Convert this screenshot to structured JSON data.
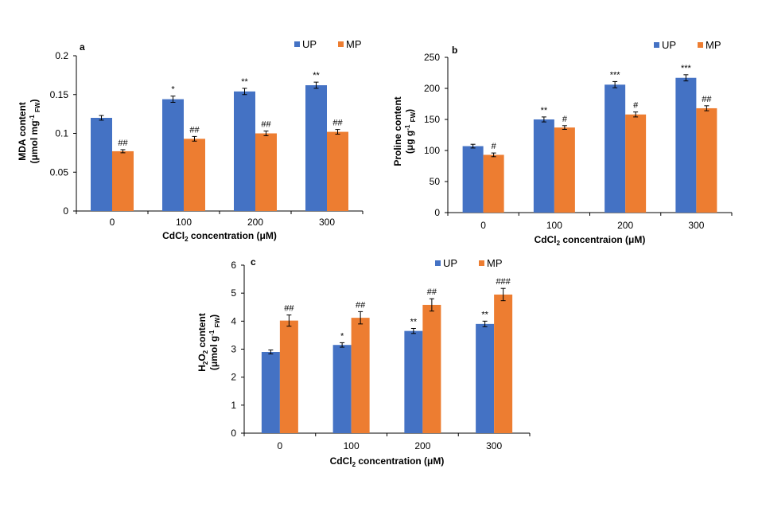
{
  "colors": {
    "UP": "#4472C4",
    "MP": "#ED7D31",
    "axis": "#000000"
  },
  "chart_data": [
    {
      "type": "bar",
      "panel": "a",
      "categories": [
        "0",
        "100",
        "200",
        "300"
      ],
      "xlabel": "CdCl2 concentration (μM)",
      "ylabel_line1": "MDA content",
      "ylabel_line2": "(μmol mg-1 FW)",
      "ylim": [
        0,
        0.2
      ],
      "yticks": [
        "0",
        "0.05",
        "0.1",
        "0.15",
        "0.2"
      ],
      "ytick_values": [
        0,
        0.05,
        0.1,
        0.15,
        0.2
      ],
      "legend_position": "top-right",
      "series": [
        {
          "name": "UP",
          "values": [
            0.12,
            0.144,
            0.154,
            0.162
          ],
          "errors": [
            0.003,
            0.004,
            0.004,
            0.004
          ],
          "annotations": [
            "",
            "*",
            "**",
            "**"
          ]
        },
        {
          "name": "MP",
          "values": [
            0.077,
            0.093,
            0.1,
            0.102
          ],
          "errors": [
            0.002,
            0.003,
            0.003,
            0.003
          ],
          "annotations": [
            "##",
            "##",
            "##",
            "##"
          ]
        }
      ]
    },
    {
      "type": "bar",
      "panel": "b",
      "categories": [
        "0",
        "100",
        "200",
        "300"
      ],
      "xlabel": "CdCl2 concentraion (μM)",
      "ylabel_line1": "Proline content",
      "ylabel_line2": "(μg g-1 FW)",
      "ylim": [
        0,
        250
      ],
      "yticks": [
        "0",
        "50",
        "100",
        "150",
        "200",
        "250"
      ],
      "ytick_values": [
        0,
        50,
        100,
        150,
        200,
        250
      ],
      "legend_position": "top-right",
      "series": [
        {
          "name": "UP",
          "values": [
            107,
            150,
            206,
            217
          ],
          "errors": [
            3,
            4,
            5,
            5
          ],
          "annotations": [
            "",
            "**",
            "***",
            "***"
          ]
        },
        {
          "name": "MP",
          "values": [
            93,
            137,
            158,
            168
          ],
          "errors": [
            3,
            3,
            4,
            4
          ],
          "annotations": [
            "#",
            "#",
            "#",
            "##"
          ]
        }
      ]
    },
    {
      "type": "bar",
      "panel": "c",
      "categories": [
        "0",
        "100",
        "200",
        "300"
      ],
      "xlabel": "CdCl2 concentration (μM)",
      "ylabel_line1": "H2O2 content",
      "ylabel_line2": "(μmol g-1 FW)",
      "ylim": [
        0,
        6
      ],
      "yticks": [
        "0",
        "1",
        "2",
        "3",
        "4",
        "5",
        "6"
      ],
      "ytick_values": [
        0,
        1,
        2,
        3,
        4,
        5,
        6
      ],
      "legend_position": "top-right",
      "series": [
        {
          "name": "UP",
          "values": [
            2.9,
            3.15,
            3.65,
            3.9
          ],
          "errors": [
            0.07,
            0.08,
            0.09,
            0.1
          ],
          "annotations": [
            "",
            "*",
            "**",
            "**"
          ]
        },
        {
          "name": "MP",
          "values": [
            4.02,
            4.12,
            4.58,
            4.95
          ],
          "errors": [
            0.2,
            0.22,
            0.22,
            0.22
          ],
          "annotations": [
            "##",
            "##",
            "##",
            "###"
          ]
        }
      ]
    }
  ]
}
